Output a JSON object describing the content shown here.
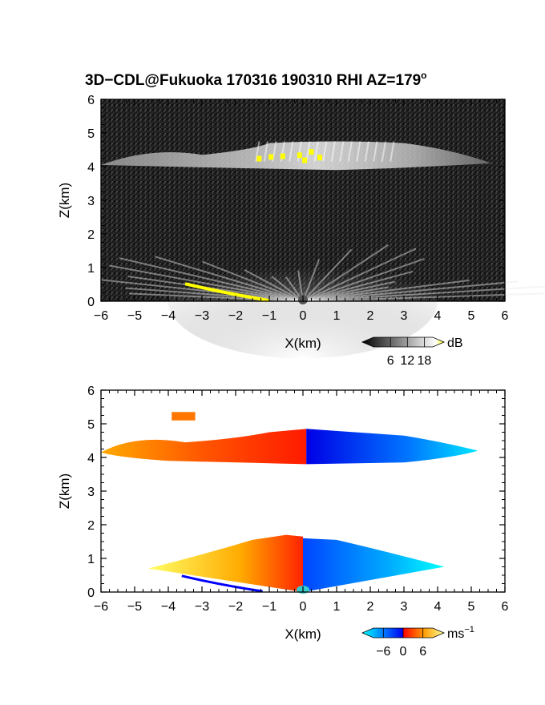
{
  "title": {
    "main": "3D−CDL@Fukuoka 170316 190310 RHI AZ=179",
    "degree_mark": "o"
  },
  "chart_data": [
    {
      "type": "heatmap",
      "name": "reflectivity-panel",
      "xlabel": "X(km)",
      "ylabel": "Z(km)",
      "xlim": [
        -6,
        6
      ],
      "ylim": [
        0,
        6
      ],
      "x_ticks": [
        "−6",
        "−5",
        "−4",
        "−3",
        "−2",
        "−1",
        "0",
        "1",
        "2",
        "3",
        "4",
        "5",
        "6"
      ],
      "y_ticks": [
        "0",
        "1",
        "2",
        "3",
        "4",
        "5",
        "6"
      ],
      "features": [
        {
          "kind": "cloud-layer",
          "x": [
            -6,
            5.6
          ],
          "z": [
            3.9,
            4.8
          ]
        },
        {
          "kind": "near-ground-echo",
          "x": [
            -4,
            4
          ],
          "z": [
            0,
            1.7
          ]
        },
        {
          "kind": "strong-echo",
          "x": [
            -3.5,
            -1
          ],
          "z": [
            0,
            0.55
          ]
        },
        {
          "kind": "strong-echo",
          "x": [
            -1.3,
            0.6
          ],
          "z": [
            4.1,
            4.5
          ]
        }
      ],
      "colorbar": {
        "unit_label": "dB",
        "ticks": [
          "6",
          "12",
          "18"
        ],
        "range": [
          0,
          21
        ],
        "palette": [
          "#000000",
          "#2a2a2a",
          "#555555",
          "#888888",
          "#b3b3b3",
          "#dddddd",
          "#ffffff",
          "#ffff00"
        ]
      }
    },
    {
      "type": "heatmap",
      "name": "velocity-panel",
      "xlabel": "X(km)",
      "ylabel": "Z(km)",
      "xlim": [
        -6,
        6
      ],
      "ylim": [
        0,
        6
      ],
      "x_ticks": [
        "−6",
        "−5",
        "−4",
        "−3",
        "−2",
        "−1",
        "0",
        "1",
        "2",
        "3",
        "4",
        "5",
        "6"
      ],
      "y_ticks": [
        "0",
        "1",
        "2",
        "3",
        "4",
        "5",
        "6"
      ],
      "features": [
        {
          "kind": "cloud-layer-positive",
          "x": [
            -6,
            0.1
          ],
          "z": [
            3.8,
            4.8
          ],
          "value": 4
        },
        {
          "kind": "cloud-layer-negative",
          "x": [
            0.1,
            5.2
          ],
          "z": [
            3.8,
            4.8
          ],
          "value": -5
        },
        {
          "kind": "near-ground-positive",
          "x": [
            -4.6,
            0
          ],
          "z": [
            0,
            1.7
          ],
          "value": 3
        },
        {
          "kind": "near-ground-negative",
          "x": [
            0,
            4.2
          ],
          "z": [
            0,
            1.6
          ],
          "value": -5
        },
        {
          "kind": "patch",
          "x": [
            -3.9,
            -3.2
          ],
          "z": [
            5.1,
            5.35
          ],
          "value": 6
        }
      ],
      "colorbar": {
        "unit_label": "ms",
        "unit_exponent": "−1",
        "ticks": [
          "−6",
          "0",
          "6"
        ],
        "range": [
          -9,
          9
        ],
        "palette": [
          "#00ffff",
          "#0099ff",
          "#0000ff",
          "#ff0000",
          "#ff6600",
          "#ffcc00",
          "#ffff99"
        ]
      }
    }
  ]
}
